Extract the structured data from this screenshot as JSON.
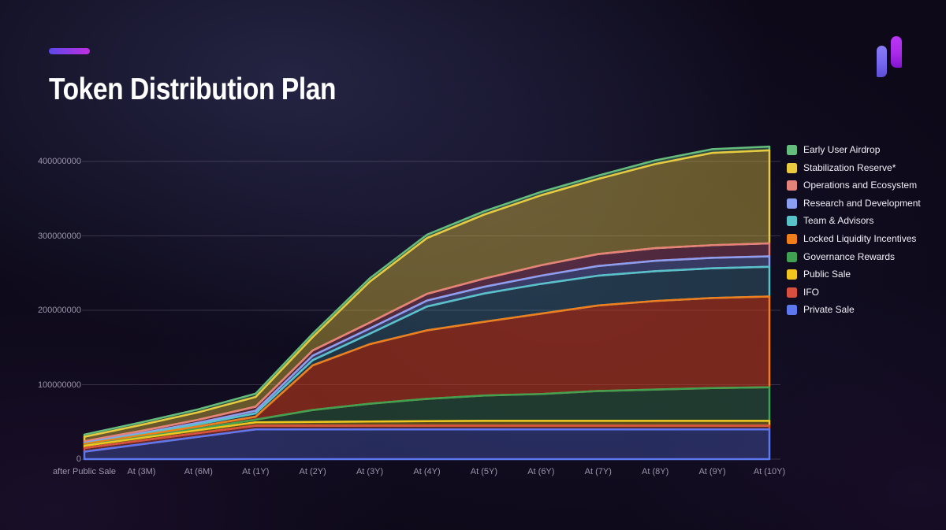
{
  "page": {
    "title": "Token Distribution Plan"
  },
  "colors": {
    "background": "#0d0919",
    "accent_gradient_from": "#5b49e8",
    "accent_gradient_to": "#c12ee0",
    "logo_bar_left": "#7668f0",
    "logo_bar_right": "#a82ae8",
    "grid_line": "rgba(225,221,240,0.18)",
    "axis_text": "#9b95ad",
    "legend_text": "#f1eff7"
  },
  "chart_data": {
    "type": "area",
    "stacked": true,
    "title": "Token Distribution Plan",
    "grid": true,
    "x_labels": [
      "after Public Sale",
      "At (3M)",
      "At (6M)",
      "At (1Y)",
      "At (2Y)",
      "At (3Y)",
      "At (4Y)",
      "At (5Y)",
      "At (6Y)",
      "At (7Y)",
      "At (8Y)",
      "At (9Y)",
      "At (10Y)"
    ],
    "y_ticks": [
      0,
      100000000,
      200000000,
      300000000,
      400000000
    ],
    "y_tick_labels": [
      "0",
      "100000000",
      "200000000",
      "300000000",
      "400000000"
    ],
    "ylim": [
      0,
      420000000
    ],
    "series_note": "values in tokens, listed bottom-to-top of the stack, estimated from pixels",
    "series": [
      {
        "name": "Private Sale",
        "color": "#5d78ee",
        "fill": "rgba(93,120,238,0.30)",
        "values": [
          10000000,
          20000000,
          30000000,
          40000000,
          40000000,
          40000000,
          40000000,
          40000000,
          40000000,
          40000000,
          40000000,
          40000000,
          40000000
        ]
      },
      {
        "name": "IFO",
        "color": "#d94f3f",
        "fill": "rgba(217,79,63,0.40)",
        "values": [
          5000000,
          5000000,
          5000000,
          5000000,
          5000000,
          5000000,
          5000000,
          5000000,
          5000000,
          5000000,
          5000000,
          5000000,
          5000000
        ]
      },
      {
        "name": "Public Sale",
        "color": "#f2c41e",
        "fill": "rgba(242,196,30,0.35)",
        "values": [
          3000000,
          3500000,
          4000000,
          4500000,
          5000000,
          5500000,
          6000000,
          6500000,
          6500000,
          6500000,
          6500000,
          6500000,
          6500000
        ]
      },
      {
        "name": "Governance Rewards",
        "color": "#41a152",
        "fill": "rgba(65,161,82,0.30)",
        "values": [
          500000,
          1000000,
          2000000,
          3500000,
          16000000,
          24000000,
          30000000,
          34000000,
          36000000,
          40000000,
          42000000,
          44000000,
          45000000
        ]
      },
      {
        "name": "Locked Liquidity Incentives",
        "color": "#ef7e1b",
        "fill": "rgba(205,62,28,0.55)",
        "values": [
          2000000,
          2500000,
          3000000,
          4000000,
          60000000,
          80000000,
          92000000,
          99000000,
          108000000,
          115000000,
          119000000,
          121000000,
          122000000
        ]
      },
      {
        "name": "Team & Advisors",
        "color": "#58c2c8",
        "fill": "rgba(88,194,200,0.22)",
        "values": [
          500000,
          1500000,
          3000000,
          4500000,
          7000000,
          14000000,
          32000000,
          38000000,
          40000000,
          40000000,
          40000000,
          40000000,
          40000000
        ]
      },
      {
        "name": "Research and Development",
        "color": "#8c9ef2",
        "fill": "rgba(140,158,242,0.30)",
        "values": [
          1000000,
          1500000,
          2000000,
          3500000,
          6000000,
          7000000,
          8000000,
          9000000,
          11000000,
          13000000,
          14000000,
          14000000,
          14000000
        ]
      },
      {
        "name": "Operations and Ecosystem",
        "color": "#e5827a",
        "fill": "rgba(196,90,110,0.35)",
        "values": [
          2000000,
          3000000,
          4000000,
          5500000,
          7000000,
          8000000,
          9000000,
          11000000,
          14000000,
          16000000,
          17000000,
          17000000,
          17500000
        ]
      },
      {
        "name": "Stabilization Reserve*",
        "color": "#e9c93e",
        "fill": "rgba(233,201,62,0.40)",
        "values": [
          6000000,
          8000000,
          10000000,
          13000000,
          18000000,
          55000000,
          75000000,
          86000000,
          94000000,
          101000000,
          113000000,
          124000000,
          125000000
        ]
      },
      {
        "name": "Early User Airdrop",
        "color": "#64bd7c",
        "fill": "rgba(100,189,124,0.35)",
        "values": [
          3000000,
          3500000,
          4000000,
          4500000,
          4500000,
          4500000,
          4500000,
          4500000,
          4500000,
          4500000,
          5000000,
          5000000,
          5000000
        ]
      }
    ],
    "legend_position": "right",
    "legend_items": [
      "Early User Airdrop",
      "Stabilization Reserve*",
      "Operations and Ecosystem",
      "Research and Development",
      "Team & Advisors",
      "Locked Liquidity Incentives",
      "Governance Rewards",
      "Public Sale",
      "IFO",
      "Private Sale"
    ]
  }
}
